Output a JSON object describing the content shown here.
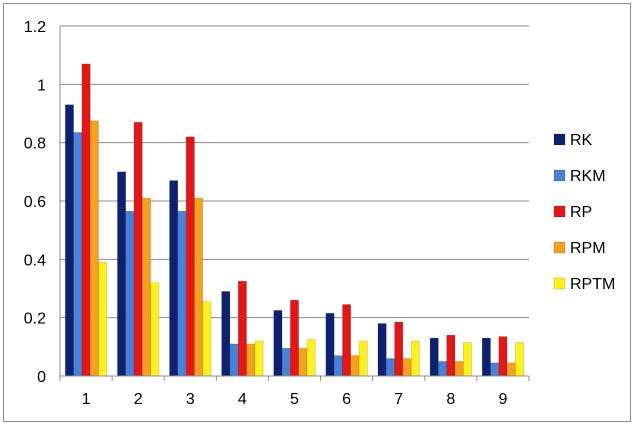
{
  "chart_data": {
    "type": "bar",
    "categories": [
      "1",
      "2",
      "3",
      "4",
      "5",
      "6",
      "7",
      "8",
      "9"
    ],
    "series": [
      {
        "name": "RK",
        "color": "#0c2270",
        "values": [
          0.93,
          0.7,
          0.67,
          0.29,
          0.225,
          0.215,
          0.18,
          0.13,
          0.13
        ]
      },
      {
        "name": "RKM",
        "color": "#4a80d6",
        "values": [
          0.835,
          0.565,
          0.565,
          0.11,
          0.095,
          0.07,
          0.06,
          0.05,
          0.045
        ]
      },
      {
        "name": "RP",
        "color": "#e01818",
        "values": [
          1.07,
          0.87,
          0.82,
          0.325,
          0.26,
          0.245,
          0.185,
          0.14,
          0.135
        ]
      },
      {
        "name": "RPM",
        "color": "#f5a020",
        "values": [
          0.875,
          0.61,
          0.61,
          0.11,
          0.095,
          0.07,
          0.06,
          0.05,
          0.045
        ]
      },
      {
        "name": "RPTM",
        "color": "#fff020",
        "values": [
          0.39,
          0.32,
          0.255,
          0.12,
          0.125,
          0.12,
          0.12,
          0.115,
          0.115
        ]
      }
    ],
    "y_ticks": [
      "0",
      "0.2",
      "0.4",
      "0.6",
      "0.8",
      "1",
      "1.2"
    ],
    "ylim": [
      0,
      1.2
    ],
    "grid": true,
    "legend_position": "right"
  }
}
